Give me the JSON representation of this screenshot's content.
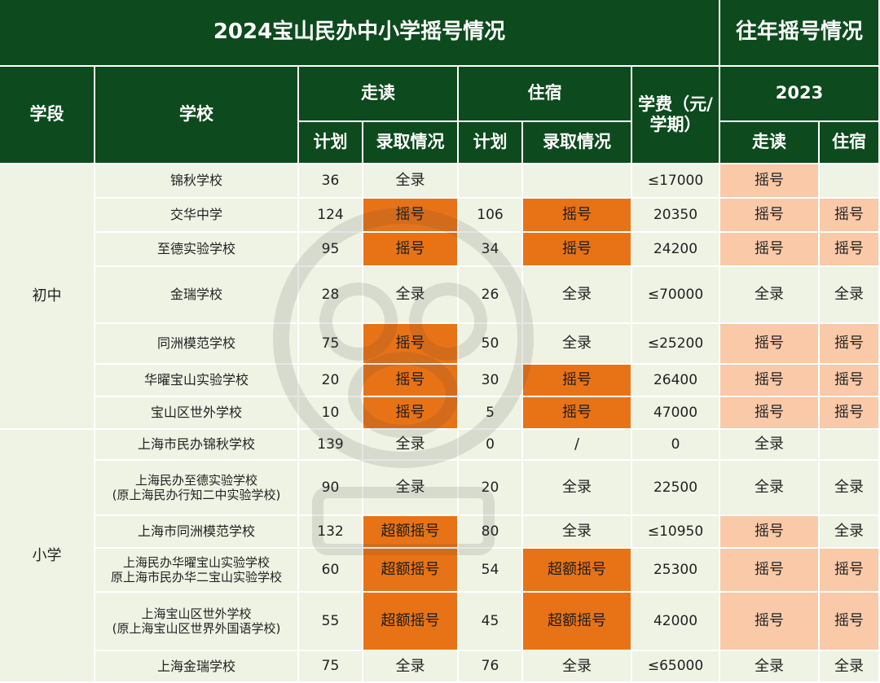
{
  "title": "2024宝山民办中小学摇号情况",
  "past_title": "往年摇号情况",
  "headers": {
    "stage": "学段",
    "school": "学校",
    "walk": "走读",
    "board": "住宿",
    "fee": "学费（元/学期）",
    "year": "2023",
    "plan": "计划",
    "admit": "录取情况",
    "past_walk": "走读",
    "past_board": "住宿"
  },
  "stages": {
    "middle": "初中",
    "primary": "小学"
  },
  "colors": {
    "header": "#0d4a1d",
    "body": "#eef3e4",
    "lottery_2024": "#e87316",
    "lottery_past": "#f9c9a8"
  },
  "rows": [
    {
      "school": "锦秋学校",
      "walk_plan": "36",
      "walk_admit": "全录",
      "board_plan": "",
      "board_admit": "",
      "fee": "≤17000",
      "past_walk": "摇号",
      "past_board": ""
    },
    {
      "school": "交华中学",
      "walk_plan": "124",
      "walk_admit": "摇号",
      "board_plan": "106",
      "board_admit": "摇号",
      "fee": "20350",
      "past_walk": "摇号",
      "past_board": "摇号"
    },
    {
      "school": "至德实验学校",
      "walk_plan": "95",
      "walk_admit": "摇号",
      "board_plan": "34",
      "board_admit": "摇号",
      "fee": "24200",
      "past_walk": "摇号",
      "past_board": "摇号"
    },
    {
      "school": "金瑞学校",
      "walk_plan": "28",
      "walk_admit": "全录",
      "board_plan": "26",
      "board_admit": "全录",
      "fee": "≤70000",
      "past_walk": "全录",
      "past_board": "全录"
    },
    {
      "school": "同洲模范学校",
      "walk_plan": "75",
      "walk_admit": "摇号",
      "board_plan": "50",
      "board_admit": "全录",
      "fee": "≤25200",
      "past_walk": "摇号",
      "past_board": "摇号"
    },
    {
      "school": "华曜宝山实验学校",
      "walk_plan": "20",
      "walk_admit": "摇号",
      "board_plan": "30",
      "board_admit": "摇号",
      "fee": "26400",
      "past_walk": "摇号",
      "past_board": "摇号"
    },
    {
      "school": "宝山区世外学校",
      "walk_plan": "10",
      "walk_admit": "摇号",
      "board_plan": "5",
      "board_admit": "摇号",
      "fee": "47000",
      "past_walk": "摇号",
      "past_board": "摇号"
    },
    {
      "school": "上海市民办锦秋学校",
      "walk_plan": "139",
      "walk_admit": "全录",
      "board_plan": "0",
      "board_admit": "/",
      "fee": "0",
      "past_walk": "全录",
      "past_board": ""
    },
    {
      "school": "上海民办至德实验学校\n(原上海民办行知二中实验学校)",
      "walk_plan": "90",
      "walk_admit": "全录",
      "board_plan": "20",
      "board_admit": "全录",
      "fee": "22500",
      "past_walk": "全录",
      "past_board": "全录"
    },
    {
      "school": "上海市同洲模范学校",
      "walk_plan": "132",
      "walk_admit": "超额摇号",
      "board_plan": "80",
      "board_admit": "全录",
      "fee": "≤10950",
      "past_walk": "摇号",
      "past_board": "全录"
    },
    {
      "school": "上海民办华曜宝山实验学校\n原上海市民办华二宝山实验学校",
      "walk_plan": "60",
      "walk_admit": "超额摇号",
      "board_plan": "54",
      "board_admit": "超额摇号",
      "fee": "25300",
      "past_walk": "摇号",
      "past_board": "摇号"
    },
    {
      "school": "上海宝山区世外学校\n(原上海宝山区世界外国语学校)",
      "walk_plan": "55",
      "walk_admit": "超额摇号",
      "board_plan": "45",
      "board_admit": "超额摇号",
      "fee": "42000",
      "past_walk": "摇号",
      "past_board": "摇号"
    },
    {
      "school": "上海金瑞学校",
      "walk_plan": "75",
      "walk_admit": "全录",
      "board_plan": "76",
      "board_admit": "全录",
      "fee": "≤65000",
      "past_walk": "全录",
      "past_board": "全录"
    }
  ]
}
